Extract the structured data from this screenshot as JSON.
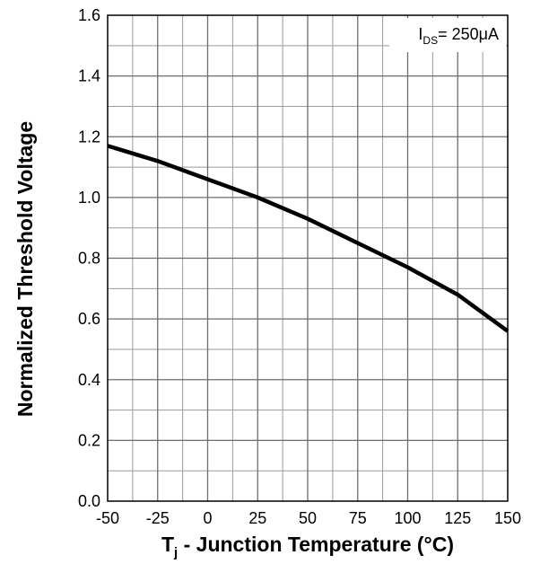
{
  "chart_data": {
    "type": "line",
    "xlabel": {
      "main": "T",
      "subscript": "j",
      "rest": " - Junction Temperature (°C)"
    },
    "ylabel": "Normalized Threshold Voltage",
    "xlim": [
      -50,
      150
    ],
    "ylim": [
      0,
      1.6
    ],
    "x_ticks": [
      -50,
      -25,
      0,
      25,
      50,
      75,
      100,
      125,
      150
    ],
    "y_ticks": [
      0.0,
      0.2,
      0.4,
      0.6,
      0.8,
      1.0,
      1.2,
      1.4,
      1.6
    ],
    "grid": true,
    "annotation": {
      "main": "I",
      "subscript": "DS",
      "rest": "= 250μA",
      "position": "top-right"
    },
    "series": [
      {
        "x": [
          -50,
          -25,
          0,
          25,
          50,
          75,
          100,
          125,
          150
        ],
        "y": [
          1.17,
          1.12,
          1.06,
          1.0,
          0.93,
          0.85,
          0.77,
          0.68,
          0.56
        ]
      }
    ],
    "line_color": "#000000"
  }
}
